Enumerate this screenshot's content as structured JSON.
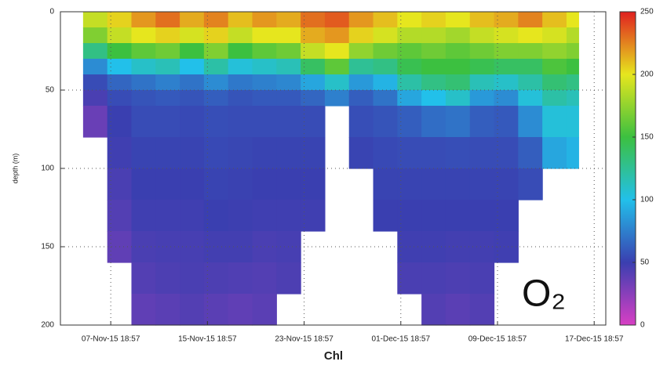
{
  "chart_data": {
    "type": "heatmap",
    "title": "Chl",
    "ylabel": "depth (m)",
    "annotation": "O₂",
    "x": [
      "2015-11-05T12:00",
      "2015-11-07T12:00",
      "2015-11-09T12:00",
      "2015-11-11T12:00",
      "2015-11-13T12:00",
      "2015-11-15T12:00",
      "2015-11-17T12:00",
      "2015-11-19T12:00",
      "2015-11-21T12:00",
      "2015-11-23T12:00",
      "2015-11-25T12:00",
      "2015-11-27T12:00",
      "2015-11-29T12:00",
      "2015-12-01T12:00",
      "2015-12-03T12:00",
      "2015-12-05T12:00",
      "2015-12-07T12:00",
      "2015-12-09T12:00",
      "2015-12-11T12:00",
      "2015-12-13T12:00",
      "2015-12-15T12:00",
      "2015-12-16T12:00"
    ],
    "y": [
      0,
      10,
      20,
      30,
      40,
      50,
      60,
      80,
      100,
      120,
      140,
      160,
      180,
      200
    ],
    "values": [
      [
        190,
        170,
        130,
        80,
        55,
        45,
        35,
        null,
        null,
        null,
        null,
        null,
        null
      ],
      [
        205,
        190,
        150,
        100,
        65,
        55,
        50,
        48,
        45,
        42,
        38,
        null,
        null
      ],
      [
        220,
        200,
        160,
        110,
        70,
        58,
        55,
        52,
        50,
        48,
        45,
        42,
        38
      ],
      [
        230,
        205,
        165,
        115,
        75,
        60,
        55,
        52,
        50,
        48,
        46,
        44,
        40
      ],
      [
        215,
        195,
        150,
        100,
        70,
        58,
        54,
        52,
        50,
        48,
        46,
        45,
        42
      ],
      [
        225,
        205,
        170,
        120,
        80,
        62,
        56,
        54,
        52,
        50,
        47,
        44,
        40
      ],
      [
        210,
        190,
        150,
        105,
        72,
        58,
        55,
        53,
        51,
        49,
        47,
        43,
        38
      ],
      [
        220,
        200,
        160,
        110,
        75,
        60,
        55,
        52,
        50,
        48,
        45,
        42,
        40
      ],
      [
        215,
        200,
        165,
        115,
        78,
        60,
        55,
        52,
        50,
        48,
        46,
        44,
        null
      ],
      [
        230,
        215,
        190,
        140,
        90,
        65,
        55,
        52,
        50,
        48,
        null,
        null,
        null
      ],
      [
        235,
        220,
        200,
        160,
        110,
        75,
        null,
        null,
        null,
        null,
        null,
        null,
        null
      ],
      [
        220,
        205,
        175,
        125,
        85,
        62,
        56,
        52,
        null,
        null,
        null,
        null,
        null
      ],
      [
        210,
        195,
        165,
        130,
        95,
        70,
        58,
        54,
        52,
        50,
        null,
        null,
        null
      ],
      [
        200,
        185,
        160,
        145,
        120,
        90,
        62,
        55,
        52,
        50,
        48,
        45,
        null
      ],
      [
        205,
        185,
        165,
        150,
        130,
        100,
        68,
        55,
        52,
        50,
        48,
        45,
        42
      ],
      [
        200,
        180,
        160,
        150,
        135,
        110,
        70,
        56,
        52,
        50,
        47,
        44,
        40
      ],
      [
        210,
        190,
        165,
        145,
        115,
        85,
        62,
        55,
        52,
        50,
        47,
        45,
        42
      ],
      [
        215,
        195,
        170,
        140,
        110,
        80,
        60,
        55,
        52,
        50,
        48,
        null,
        null
      ],
      [
        225,
        200,
        170,
        140,
        120,
        105,
        80,
        62,
        55,
        null,
        null,
        null,
        null
      ],
      [
        210,
        195,
        175,
        155,
        135,
        120,
        105,
        90,
        null,
        null,
        null,
        null,
        null
      ],
      [
        200,
        185,
        170,
        150,
        130,
        115,
        105,
        95,
        null,
        null,
        null,
        null,
        null
      ]
    ],
    "xlim": [
      "2015-11-03T15:00",
      "2015-12-18T18:00"
    ],
    "xticks": [
      {
        "value": "2015-11-07T18:57",
        "label": "07-Nov-15 18:57"
      },
      {
        "value": "2015-11-15T18:57",
        "label": "15-Nov-15 18:57"
      },
      {
        "value": "2015-11-23T18:57",
        "label": "23-Nov-15 18:57"
      },
      {
        "value": "2015-12-01T18:57",
        "label": "01-Dec-15 18:57"
      },
      {
        "value": "2015-12-09T18:57",
        "label": "09-Dec-15 18:57"
      },
      {
        "value": "2015-12-17T18:57",
        "label": "17-Dec-15 18:57"
      }
    ],
    "ylim": [
      0,
      200
    ],
    "yticks": [
      0,
      50,
      100,
      150,
      200
    ],
    "y_inverted": true,
    "clim": [
      0,
      250
    ],
    "cticks": [
      0,
      50,
      100,
      150,
      200,
      250
    ],
    "colormap": [
      "#d83fc4",
      "#3a3fb0",
      "#22c0ea",
      "#3cc040",
      "#e6e61e",
      "#e02020"
    ],
    "grid": true
  }
}
